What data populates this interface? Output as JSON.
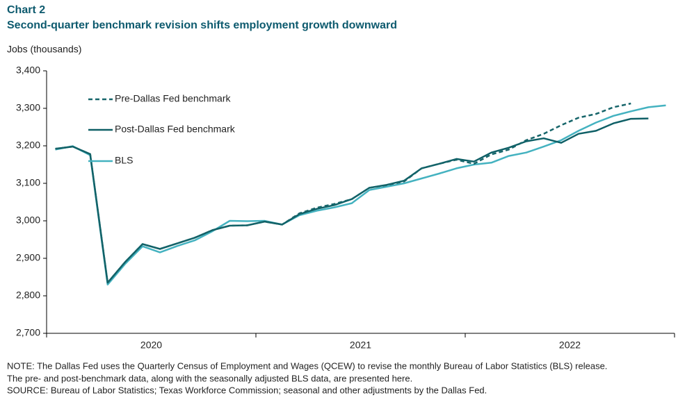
{
  "chart_data": {
    "type": "line",
    "title": "Chart 2",
    "subtitle": "Second-quarter benchmark revision shifts employment growth downward",
    "y_axis_label": "Jobs (thousands)",
    "categories": [
      null,
      null,
      null,
      null,
      null,
      null,
      null,
      null,
      null,
      null,
      null,
      null,
      null,
      null,
      null,
      null,
      null,
      null,
      null,
      null,
      null,
      null,
      null,
      null,
      null,
      null,
      null,
      null,
      null,
      null,
      null,
      null,
      null,
      null,
      null,
      null
    ],
    "x_groups": [
      "2020",
      "2021",
      "2022"
    ],
    "series": [
      {
        "name": "Pre-Dallas Fed benchmark",
        "color": "#16656a",
        "dashed": true,
        "values": [
          3192,
          3198,
          3178,
          2835,
          2890,
          2938,
          2925,
          2940,
          2955,
          2975,
          2987,
          2988,
          2998,
          2990,
          3020,
          3035,
          3045,
          3058,
          3088,
          3095,
          3105,
          3140,
          3152,
          3163,
          3152,
          3177,
          3190,
          3215,
          3232,
          3255,
          3275,
          3285,
          3303,
          3313,
          null,
          null
        ]
      },
      {
        "name": "Post-Dallas Fed benchmark",
        "color": "#0e5f66",
        "dashed": false,
        "values": [
          3192,
          3198,
          3178,
          2835,
          2890,
          2938,
          2925,
          2940,
          2955,
          2975,
          2987,
          2988,
          2998,
          2990,
          3018,
          3032,
          3042,
          3058,
          3088,
          3096,
          3107,
          3140,
          3152,
          3165,
          3158,
          3182,
          3195,
          3212,
          3220,
          3208,
          3232,
          3240,
          3260,
          3272,
          3273,
          null
        ]
      },
      {
        "name": "BLS",
        "color": "#44b2c0",
        "dashed": false,
        "values": [
          3190,
          3199,
          3175,
          2830,
          2885,
          2932,
          2916,
          2933,
          2948,
          2972,
          3000,
          2999,
          3000,
          2990,
          3015,
          3027,
          3036,
          3047,
          3082,
          3091,
          3100,
          3113,
          3126,
          3140,
          3150,
          3155,
          3173,
          3182,
          3198,
          3215,
          3240,
          3262,
          3280,
          3292,
          3303,
          3308
        ]
      }
    ],
    "ylim": [
      2700,
      3400
    ],
    "yticks": [
      {
        "value": 2700,
        "label": "2,700"
      },
      {
        "value": 2800,
        "label": "2,800"
      },
      {
        "value": 2900,
        "label": "2,900"
      },
      {
        "value": 3000,
        "label": "3,000"
      },
      {
        "value": 3100,
        "label": "3,100"
      },
      {
        "value": 3200,
        "label": "3,200"
      },
      {
        "value": 3300,
        "label": "3,300"
      },
      {
        "value": 3400,
        "label": "3,400"
      }
    ],
    "notes": [
      "NOTE: The Dallas Fed uses the Quarterly Census of Employment and Wages (QCEW) to revise the monthly Bureau of Labor Statistics (BLS) release.",
      "The pre- and post-benchmark data, along with the seasonally adjusted BLS data, are presented here.",
      "SOURCE: Bureau of Labor Statistics; Texas Workforce Commission; seasonal and other adjustments by the Dallas Fed."
    ]
  }
}
